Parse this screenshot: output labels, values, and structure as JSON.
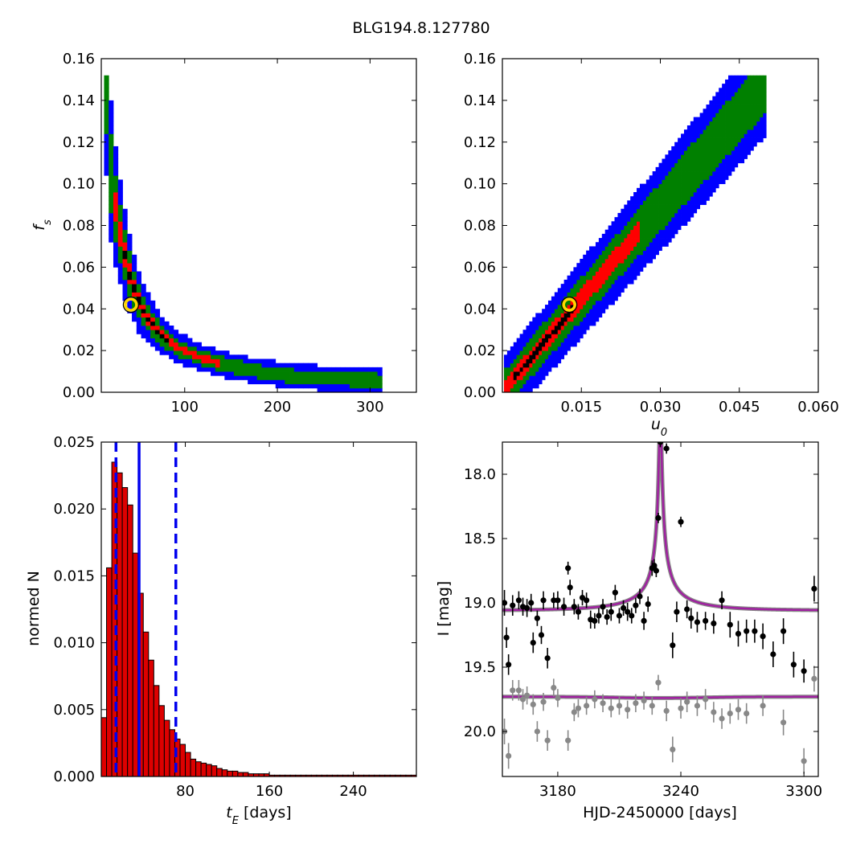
{
  "title": "BLG194.8.127780",
  "colors": {
    "outer": "#0000ff",
    "mid": "#008000",
    "inner": "#ff0000",
    "core": "#000000",
    "marker": "#ffd700",
    "model": "#a020a0",
    "hist": "#dd0000",
    "vline": "#0000ee",
    "comp": "#888888"
  },
  "chart_data": [
    {
      "type": "heatmap",
      "panel": "tE-fs",
      "ylabel": "f_s",
      "xlim": [
        10,
        350
      ],
      "ylim": [
        0,
        0.16
      ],
      "xticks": [
        100,
        200,
        300
      ],
      "xtick_labels": [
        "100",
        "200",
        "300"
      ],
      "yticks": [
        0,
        0.02,
        0.04,
        0.06,
        0.08,
        0.1,
        0.12,
        0.14,
        0.16
      ],
      "ytick_labels": [
        "0.00",
        "0.02",
        "0.04",
        "0.06",
        "0.08",
        "0.10",
        "0.12",
        "0.14",
        "0.16"
      ],
      "best_fit": {
        "x": 42,
        "y": 0.042
      }
    },
    {
      "type": "heatmap",
      "panel": "u0-fs",
      "xlabel": "u_0",
      "xlim": [
        0,
        0.06
      ],
      "ylim": [
        0,
        0.16
      ],
      "xticks": [
        0.015,
        0.03,
        0.045,
        0.06
      ],
      "xtick_labels": [
        "0.015",
        "0.030",
        "0.045",
        "0.060"
      ],
      "yticks": [
        0,
        0.02,
        0.04,
        0.06,
        0.08,
        0.1,
        0.12,
        0.14,
        0.16
      ],
      "ytick_labels": [
        "0.00",
        "0.02",
        "0.04",
        "0.06",
        "0.08",
        "0.10",
        "0.12",
        "0.14",
        "0.16"
      ],
      "best_fit": {
        "x": 0.0127,
        "y": 0.042
      }
    },
    {
      "type": "bar",
      "panel": "tE-histogram",
      "xlabel": "t_E [days]",
      "ylabel": "normed N",
      "xlim": [
        0,
        300
      ],
      "ylim": [
        0,
        0.025
      ],
      "bin_width": 5,
      "bin_starts": [
        0,
        5,
        10,
        15,
        20,
        25,
        30,
        35,
        40,
        45,
        50,
        55,
        60,
        65,
        70,
        75,
        80,
        85,
        90,
        95,
        100,
        105,
        110,
        115,
        120,
        125,
        130,
        135,
        140,
        145,
        150,
        155,
        160,
        165,
        170,
        175,
        180,
        185,
        190,
        195,
        200,
        205,
        210,
        215,
        220,
        225,
        230,
        235,
        240,
        245,
        250,
        255,
        260,
        265,
        270,
        275,
        280,
        285,
        290,
        295
      ],
      "values": [
        0.0044,
        0.0156,
        0.0235,
        0.0227,
        0.0216,
        0.0203,
        0.0167,
        0.0137,
        0.0108,
        0.0087,
        0.0068,
        0.0053,
        0.0042,
        0.0035,
        0.0028,
        0.0024,
        0.0018,
        0.0013,
        0.0011,
        0.001,
        0.0009,
        0.0008,
        0.0006,
        0.0005,
        0.0004,
        0.0004,
        0.0003,
        0.0003,
        0.0002,
        0.0002,
        0.0002,
        0.0002,
        0.0001,
        0.0001,
        0.0001,
        0.0001,
        0.0001,
        0.0001,
        0.0001,
        0.0001,
        0.0001,
        0.0001,
        0.0001,
        0.0001,
        0.0001,
        0.0001,
        0.0001,
        0.0001,
        0.0001,
        0.0001,
        0.0001,
        0.0001,
        0.0001,
        0.0001,
        0.0001,
        0.0001,
        0.0001,
        0.0001,
        0.0001,
        0.0001
      ],
      "vlines": [
        {
          "x": 36,
          "style": "solid"
        },
        {
          "x": 14,
          "style": "dashed"
        },
        {
          "x": 71,
          "style": "dashed"
        }
      ],
      "xticks": [
        80,
        160,
        240
      ],
      "xtick_labels": [
        "80",
        "160",
        "240"
      ],
      "yticks": [
        0,
        0.005,
        0.01,
        0.015,
        0.02,
        0.025
      ],
      "ytick_labels": [
        "0.000",
        "0.005",
        "0.010",
        "0.015",
        "0.020",
        "0.025"
      ]
    },
    {
      "type": "scatter",
      "panel": "lightcurve",
      "xlabel": "HJD-2450000 [days]",
      "ylabel": "I [mag]",
      "xlim": [
        3153,
        3307
      ],
      "ylim": [
        20.35,
        17.75
      ],
      "xticks": [
        3180,
        3240,
        3300
      ],
      "xtick_labels": [
        "3180",
        "3240",
        "3300"
      ],
      "yticks": [
        18.0,
        18.5,
        19.0,
        19.5,
        20.0
      ],
      "ytick_labels": [
        "18.0",
        "18.5",
        "19.0",
        "19.5",
        "20.0"
      ],
      "model": {
        "t0": 3230,
        "tE": 42,
        "u0": 0.0127,
        "fs": 0.042,
        "baseline": 19.06,
        "comp_baseline": 19.73
      },
      "series": [
        {
          "role": "data",
          "x": [
            3154,
            3155,
            3156,
            3158,
            3161,
            3163,
            3165,
            3167,
            3168,
            3170,
            3172,
            3173,
            3175,
            3178,
            3180,
            3183,
            3185,
            3186,
            3188,
            3190,
            3192,
            3194,
            3196,
            3198,
            3200,
            3202,
            3204,
            3206,
            3208,
            3210,
            3212,
            3214,
            3216,
            3218,
            3220,
            3222,
            3224,
            3226,
            3227,
            3228,
            3229,
            3230,
            3233,
            3236,
            3238,
            3240,
            3243,
            3245,
            3248,
            3252,
            3256,
            3260,
            3264,
            3268,
            3272,
            3276,
            3280,
            3285,
            3290,
            3295,
            3300,
            3305
          ],
          "y": [
            19.0,
            19.27,
            19.48,
            19.02,
            18.98,
            19.03,
            19.04,
            19.0,
            19.31,
            19.12,
            19.25,
            18.98,
            19.43,
            18.98,
            18.98,
            19.03,
            18.73,
            18.88,
            19.03,
            19.07,
            18.96,
            18.98,
            19.13,
            19.14,
            19.1,
            19.03,
            19.11,
            19.07,
            18.92,
            19.1,
            19.04,
            19.07,
            19.1,
            19.02,
            18.95,
            19.14,
            19.01,
            18.73,
            18.71,
            18.75,
            18.34,
            17.75,
            17.8,
            19.33,
            19.07,
            18.37,
            19.05,
            19.12,
            19.15,
            19.14,
            19.16,
            18.98,
            19.17,
            19.24,
            19.22,
            19.22,
            19.26,
            19.4,
            19.22,
            19.48,
            19.53,
            18.89
          ],
          "yerr": [
            0.1,
            0.08,
            0.08,
            0.08,
            0.07,
            0.07,
            0.07,
            0.07,
            0.08,
            0.06,
            0.07,
            0.07,
            0.08,
            0.06,
            0.07,
            0.07,
            0.05,
            0.06,
            0.06,
            0.06,
            0.06,
            0.06,
            0.07,
            0.06,
            0.06,
            0.06,
            0.06,
            0.07,
            0.06,
            0.06,
            0.06,
            0.07,
            0.06,
            0.06,
            0.06,
            0.07,
            0.06,
            0.06,
            0.05,
            0.05,
            0.04,
            0.04,
            0.04,
            0.1,
            0.08,
            0.04,
            0.07,
            0.08,
            0.08,
            0.07,
            0.08,
            0.07,
            0.1,
            0.1,
            0.09,
            0.09,
            0.1,
            0.1,
            0.1,
            0.1,
            0.09,
            0.1
          ]
        },
        {
          "role": "comparison",
          "x": [
            3154,
            3156,
            3158,
            3161,
            3163,
            3165,
            3168,
            3170,
            3173,
            3175,
            3178,
            3180,
            3185,
            3188,
            3190,
            3194,
            3198,
            3202,
            3206,
            3210,
            3214,
            3218,
            3222,
            3226,
            3229,
            3233,
            3236,
            3240,
            3243,
            3248,
            3252,
            3256,
            3260,
            3264,
            3268,
            3272,
            3280,
            3290,
            3300,
            3305
          ],
          "y": [
            20.0,
            20.19,
            19.68,
            19.68,
            19.75,
            19.72,
            19.79,
            20.0,
            19.77,
            20.07,
            19.66,
            19.74,
            20.07,
            19.85,
            19.82,
            19.8,
            19.75,
            19.78,
            19.82,
            19.8,
            19.83,
            19.78,
            19.76,
            19.8,
            19.62,
            19.84,
            20.14,
            19.82,
            19.77,
            19.8,
            19.75,
            19.85,
            19.9,
            19.86,
            19.83,
            19.86,
            19.8,
            19.93,
            20.23,
            19.59
          ],
          "yerr": [
            0.1,
            0.1,
            0.08,
            0.08,
            0.08,
            0.07,
            0.08,
            0.08,
            0.07,
            0.08,
            0.07,
            0.07,
            0.08,
            0.07,
            0.07,
            0.07,
            0.07,
            0.07,
            0.07,
            0.07,
            0.07,
            0.07,
            0.07,
            0.07,
            0.06,
            0.08,
            0.1,
            0.08,
            0.08,
            0.08,
            0.08,
            0.08,
            0.08,
            0.08,
            0.08,
            0.08,
            0.08,
            0.1,
            0.1,
            0.1
          ]
        }
      ]
    }
  ]
}
